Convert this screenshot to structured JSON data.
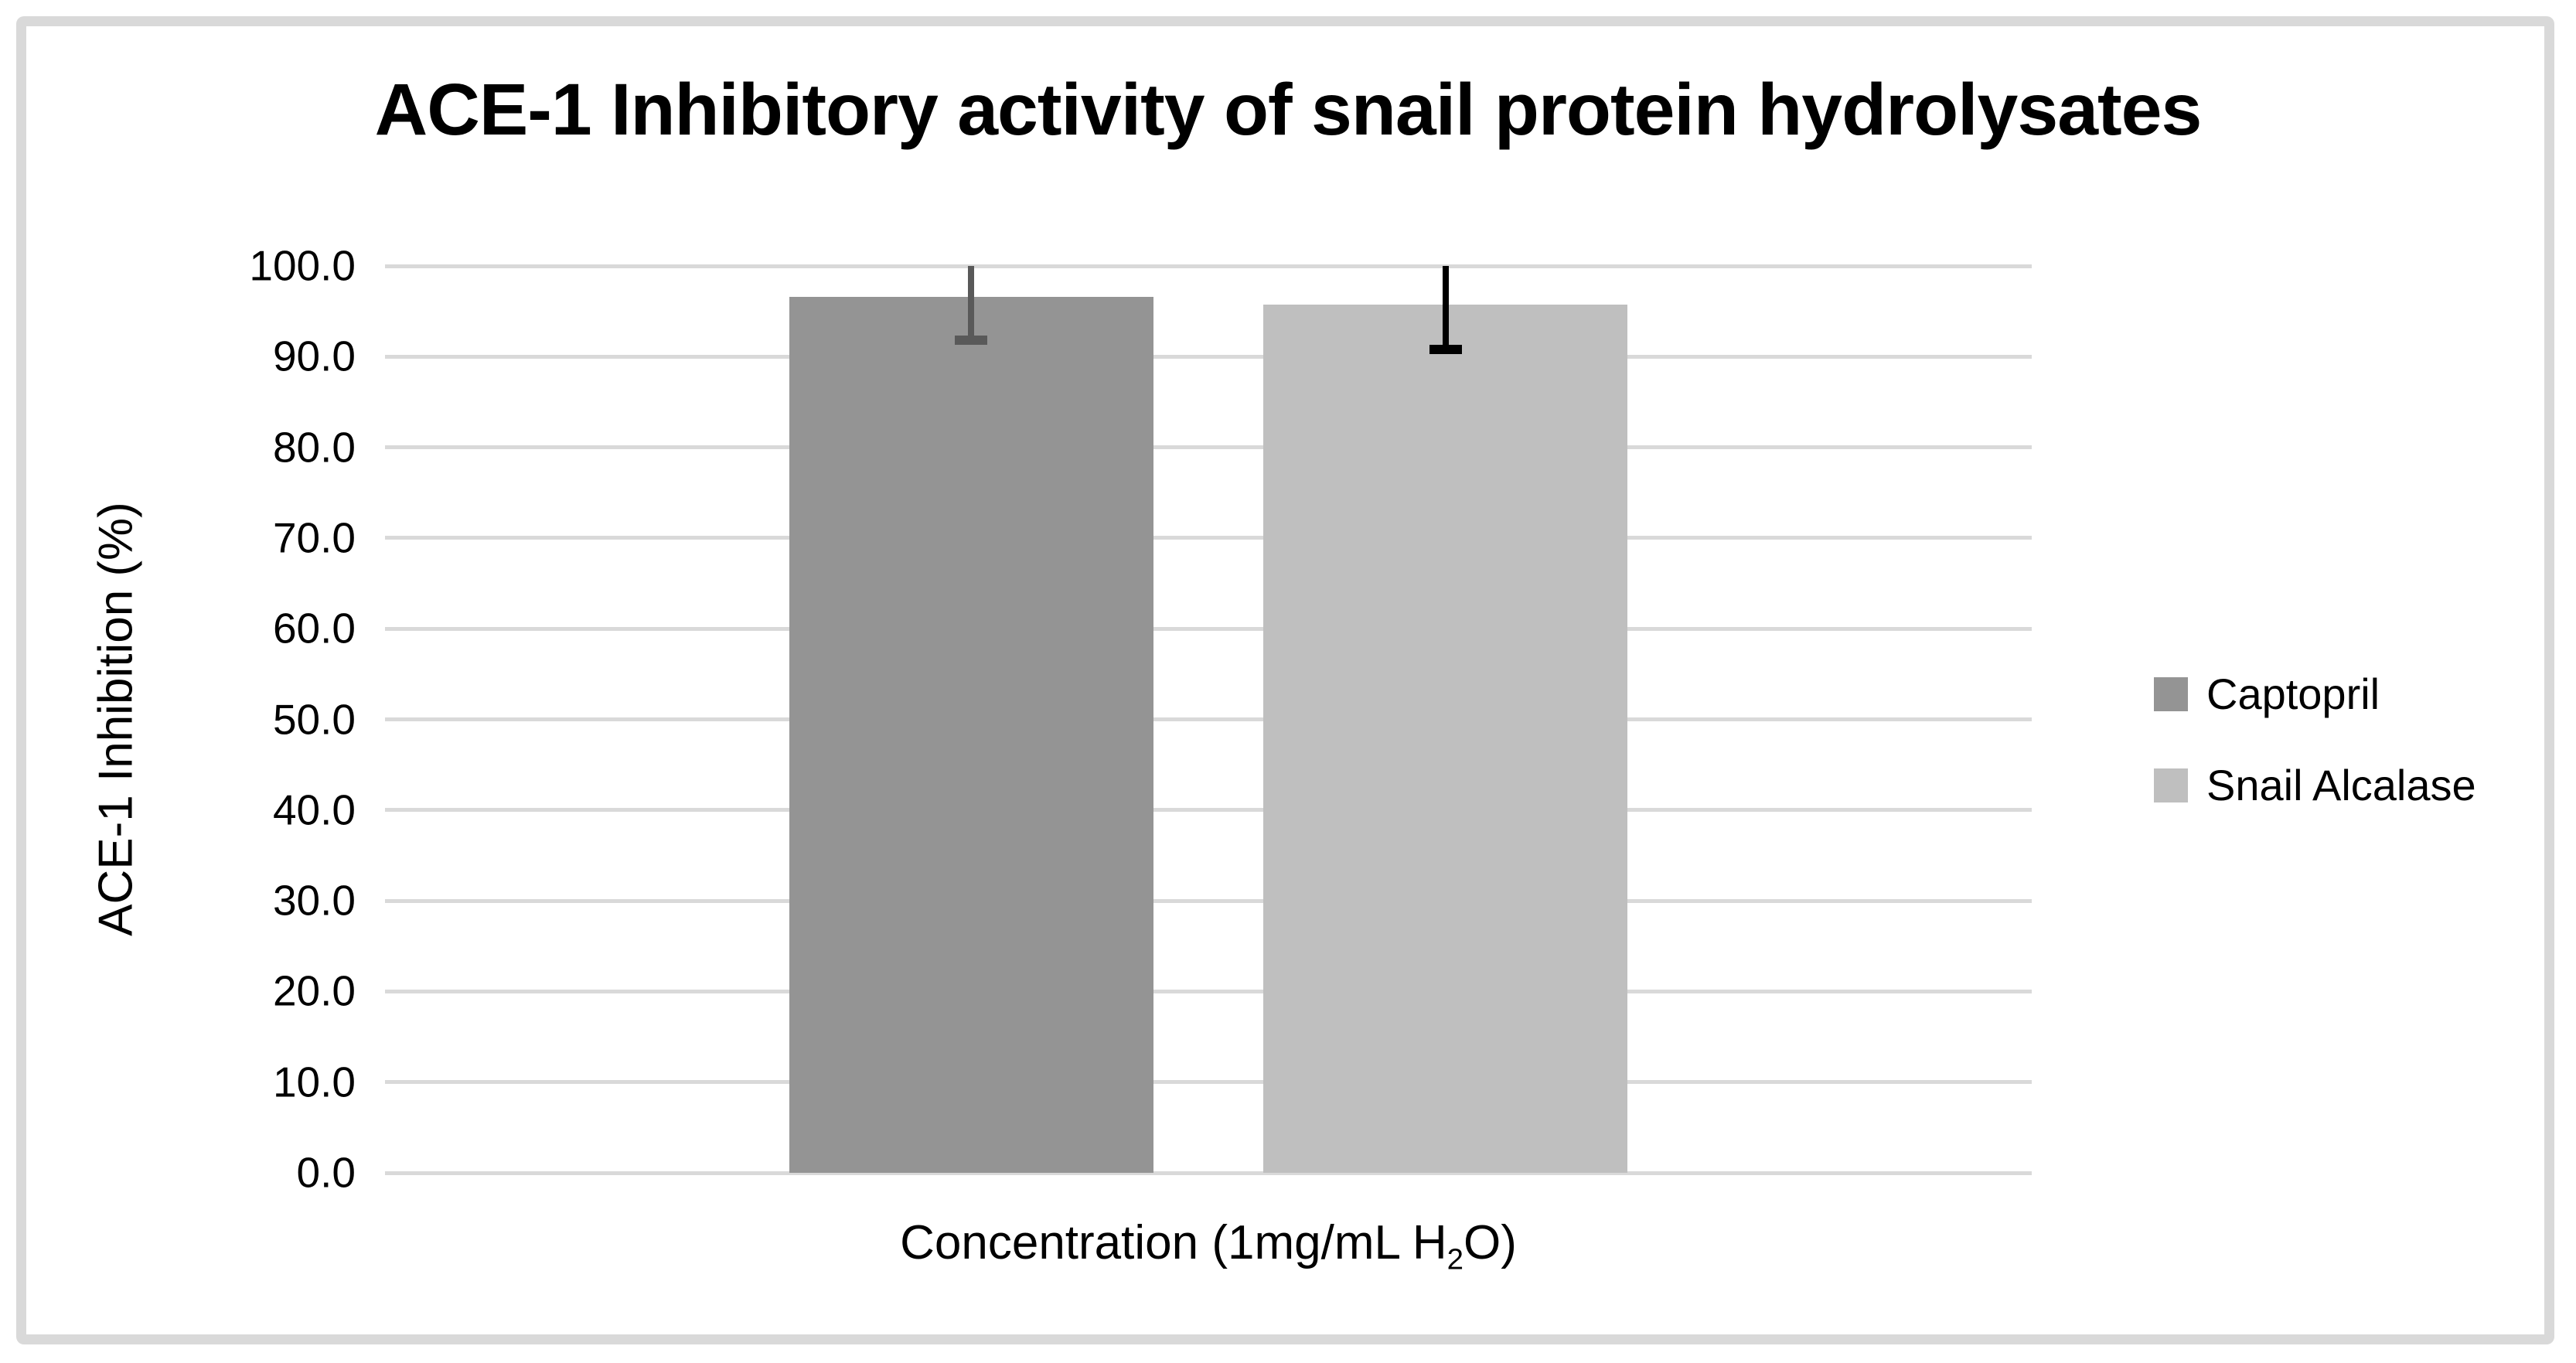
{
  "figure": {
    "background_color": "#ffffff",
    "frame_border_color": "#d9d9d9"
  },
  "chart_data": {
    "type": "bar",
    "title": "ACE-1 Inhibitory activity of snail protein hydrolysates",
    "x_axis_label": {
      "text": "Concentration (1mg/mL H2O)",
      "prefix": "Concentration (1mg/mL H",
      "subscript": "2",
      "suffix": "O)"
    },
    "y_axis_label": "ACE-1 Inhibition (%)",
    "ylim": [
      0,
      100
    ],
    "y_tick_step": 10,
    "y_tick_labels": [
      "0.0",
      "10.0",
      "20.0",
      "30.0",
      "40.0",
      "50.0",
      "60.0",
      "70.0",
      "80.0",
      "90.0",
      "100.0"
    ],
    "gridlines": true,
    "gridline_color": "#d9d9d9",
    "legend_position": "right",
    "series": [
      {
        "name": "Captopril",
        "value": 96.6,
        "error_low": 91.8,
        "error_high": 100.0,
        "error_high_clipped_at_axis_max": true,
        "color": "#949494",
        "error_color": "#595959"
      },
      {
        "name": "Snail Alcalase",
        "value": 95.7,
        "error_low": 90.8,
        "error_high": 100.0,
        "error_high_clipped_at_axis_max": true,
        "color": "#bfbfbf",
        "error_color": "#000000"
      }
    ]
  }
}
